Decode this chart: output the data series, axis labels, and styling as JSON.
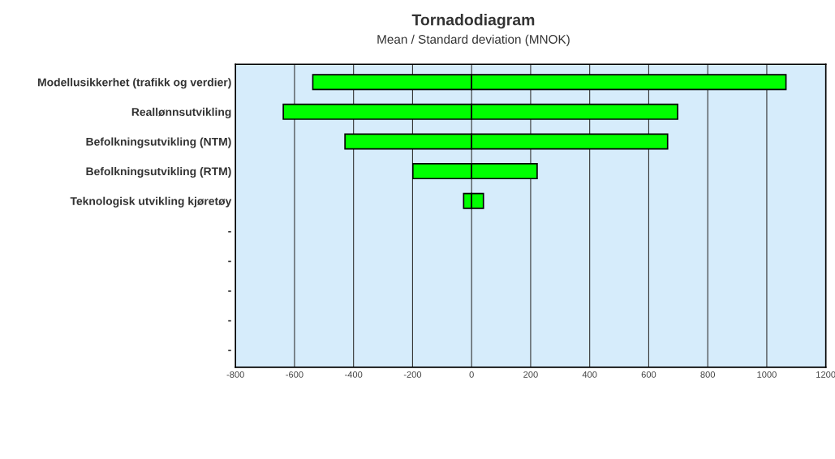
{
  "chart_data": {
    "type": "bar",
    "orientation": "horizontal",
    "stacked": true,
    "title": "Tornadodiagram",
    "subtitle": "Mean / Standard deviation (MNOK)",
    "categories": [
      "Modellusikkerhet (trafikk og verdier)",
      "Reallønnsutvikling",
      "Befolkningsutvikling (NTM)",
      "Befolkningsutvikling (RTM)",
      "Teknologisk utvikling kjøretøy",
      "-",
      "-",
      "-",
      "-",
      "-"
    ],
    "series": [
      {
        "color": "#00ff00",
        "values": [
          -538,
          -638,
          -429,
          -199,
          -27,
          null,
          null,
          null,
          null,
          null
        ]
      },
      {
        "color": "#00ff00",
        "values": [
          1065,
          698,
          664,
          222,
          40,
          null,
          null,
          null,
          null,
          null
        ]
      }
    ],
    "xlim": [
      -800,
      1200
    ],
    "xticks": [
      -800,
      -600,
      -400,
      -200,
      0,
      200,
      400,
      600,
      800,
      1000,
      1200
    ],
    "grid": "x"
  }
}
